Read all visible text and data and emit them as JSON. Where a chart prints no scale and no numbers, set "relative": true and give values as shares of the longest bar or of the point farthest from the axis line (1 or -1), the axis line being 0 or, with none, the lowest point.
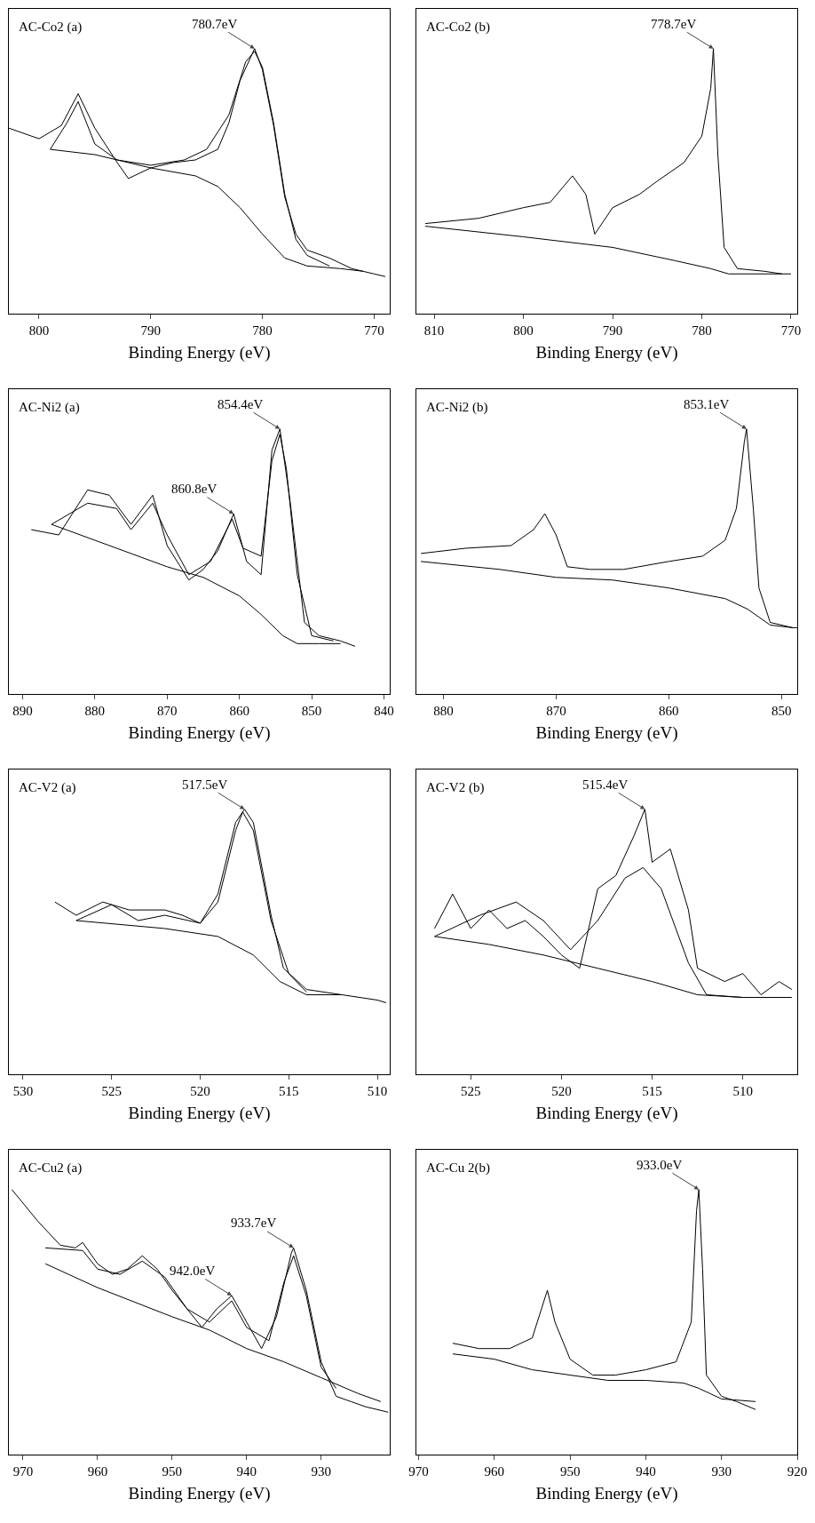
{
  "chart_data": [
    {
      "type": "line",
      "relative": true,
      "title": "AC-Co2 (a)",
      "xlabel": "Binding Energy (eV)",
      "xlim": [
        802.7,
        768.6
      ],
      "xticks": [
        800,
        790,
        780,
        770
      ],
      "annotations": [
        {
          "text": "780.7eV",
          "x": 780.7,
          "y": 1.0
        }
      ],
      "series": [
        {
          "color": "#000000",
          "x": [
            802.7,
            800,
            798,
            796.5,
            795,
            793,
            792,
            790,
            788,
            786,
            784,
            783,
            782,
            780.7,
            780,
            779,
            778,
            777,
            776,
            774,
            772,
            770,
            769
          ],
          "values": [
            0.7,
            0.66,
            0.71,
            0.83,
            0.7,
            0.57,
            0.51,
            0.55,
            0.57,
            0.58,
            0.62,
            0.72,
            0.88,
            1.0,
            0.92,
            0.71,
            0.44,
            0.3,
            0.24,
            0.21,
            0.17,
            0.15,
            0.14
          ]
        },
        {
          "color": "#000000",
          "x": [
            799,
            797.5,
            796.5,
            795,
            793,
            790,
            787,
            785,
            783,
            781.5,
            780.7,
            780,
            779,
            778,
            777,
            776,
            774
          ],
          "values": [
            0.62,
            0.72,
            0.8,
            0.64,
            0.58,
            0.56,
            0.58,
            0.62,
            0.75,
            0.95,
            0.99,
            0.93,
            0.72,
            0.45,
            0.28,
            0.22,
            0.18
          ]
        },
        {
          "color": "#000000",
          "x": [
            799,
            795,
            790,
            786,
            784,
            782,
            780,
            778,
            776,
            773,
            771
          ],
          "values": [
            0.62,
            0.6,
            0.55,
            0.52,
            0.48,
            0.4,
            0.3,
            0.21,
            0.18,
            0.17,
            0.16
          ]
        }
      ]
    },
    {
      "type": "line",
      "relative": true,
      "title": "AC-Co2 (b)",
      "xlabel": "Binding Energy (eV)",
      "xlim": [
        812,
        769.3
      ],
      "xticks": [
        810,
        800,
        790,
        780,
        770
      ],
      "annotations": [
        {
          "text": "778.7eV",
          "x": 778.7,
          "y": 1.0
        }
      ],
      "series": [
        {
          "color": "#000000",
          "x": [
            811,
            805,
            800,
            797,
            794.5,
            793,
            792,
            790,
            787,
            785,
            782,
            780,
            779,
            778.7,
            778.2,
            777.5,
            776,
            773,
            771,
            770
          ],
          "values": [
            0.34,
            0.36,
            0.4,
            0.42,
            0.52,
            0.45,
            0.3,
            0.4,
            0.45,
            0.5,
            0.57,
            0.67,
            0.85,
            1.0,
            0.6,
            0.25,
            0.17,
            0.16,
            0.15,
            0.15
          ]
        },
        {
          "color": "#000000",
          "x": [
            811,
            800,
            790,
            783,
            779,
            777,
            771
          ],
          "values": [
            0.33,
            0.29,
            0.25,
            0.2,
            0.17,
            0.15,
            0.15
          ]
        }
      ]
    },
    {
      "type": "line",
      "relative": true,
      "title": "AC-Ni2 (a)",
      "xlabel": "Binding Energy (eV)",
      "xlim": [
        891.9,
        839.2
      ],
      "xticks": [
        890,
        880,
        870,
        860,
        850,
        840
      ],
      "annotations": [
        {
          "text": "854.4eV",
          "x": 854.4,
          "y": 1.0
        },
        {
          "text": "860.8eV",
          "x": 860.8,
          "y": 0.68
        }
      ],
      "series": [
        {
          "color": "#000000",
          "x": [
            888.8,
            885,
            881,
            878,
            875,
            872,
            870,
            867,
            865,
            863,
            860.8,
            859,
            857,
            855.5,
            854.4,
            853,
            851,
            849,
            846,
            844
          ],
          "values": [
            0.62,
            0.6,
            0.77,
            0.75,
            0.64,
            0.75,
            0.56,
            0.43,
            0.47,
            0.54,
            0.68,
            0.5,
            0.45,
            0.92,
            1.0,
            0.73,
            0.27,
            0.22,
            0.2,
            0.18
          ]
        },
        {
          "color": "#000000",
          "x": [
            886,
            881,
            877,
            875,
            872,
            870,
            867,
            864,
            861,
            859.5,
            857,
            855.5,
            854.4,
            853.5,
            852,
            850,
            847
          ],
          "values": [
            0.64,
            0.72,
            0.7,
            0.62,
            0.72,
            0.6,
            0.45,
            0.5,
            0.66,
            0.55,
            0.52,
            0.88,
            0.98,
            0.85,
            0.45,
            0.22,
            0.2
          ]
        },
        {
          "color": "#000000",
          "x": [
            886,
            880,
            875,
            870,
            865,
            860,
            857,
            854,
            852,
            849,
            846
          ],
          "values": [
            0.64,
            0.58,
            0.53,
            0.48,
            0.44,
            0.37,
            0.3,
            0.22,
            0.19,
            0.19,
            0.19
          ]
        }
      ]
    },
    {
      "type": "line",
      "relative": true,
      "title": "AC-Ni2 (b)",
      "xlabel": "Binding Energy (eV)",
      "xlim": [
        882.4,
        848.6
      ],
      "xticks": [
        880,
        870,
        860,
        850
      ],
      "annotations": [
        {
          "text": "853.1eV",
          "x": 853.1,
          "y": 1.0
        }
      ],
      "series": [
        {
          "color": "#000000",
          "x": [
            882,
            878,
            874,
            872,
            871,
            870,
            869,
            867,
            864,
            860,
            857,
            855,
            854,
            853.3,
            853.1,
            852.5,
            852,
            851,
            849,
            848.6
          ],
          "values": [
            0.53,
            0.55,
            0.56,
            0.62,
            0.68,
            0.6,
            0.48,
            0.47,
            0.47,
            0.5,
            0.52,
            0.58,
            0.7,
            0.95,
            1.0,
            0.7,
            0.4,
            0.27,
            0.25,
            0.25
          ]
        },
        {
          "color": "#000000",
          "x": [
            882,
            875,
            870,
            865,
            860,
            855,
            853,
            851,
            849
          ],
          "values": [
            0.5,
            0.47,
            0.44,
            0.43,
            0.4,
            0.36,
            0.32,
            0.26,
            0.25
          ]
        }
      ]
    },
    {
      "type": "line",
      "relative": true,
      "title": "AC-V2 (a)",
      "xlabel": "Binding Energy (eV)",
      "xlim": [
        530.8,
        509.3
      ],
      "xticks": [
        530,
        525,
        520,
        515,
        510
      ],
      "annotations": [
        {
          "text": "517.5eV",
          "x": 517.5,
          "y": 1.0
        }
      ],
      "series": [
        {
          "color": "#000000",
          "x": [
            528.2,
            527,
            525.5,
            524,
            522,
            521,
            520,
            519,
            518,
            517.5,
            517,
            516,
            515.3,
            514,
            512,
            510,
            509.5
          ],
          "values": [
            0.65,
            0.6,
            0.65,
            0.62,
            0.62,
            0.6,
            0.57,
            0.68,
            0.95,
            1.0,
            0.95,
            0.6,
            0.4,
            0.32,
            0.3,
            0.28,
            0.27
          ]
        },
        {
          "color": "#000000",
          "x": [
            527,
            525,
            523.5,
            522,
            520,
            519,
            518,
            517.6,
            517,
            516,
            515,
            514
          ],
          "values": [
            0.58,
            0.64,
            0.58,
            0.6,
            0.57,
            0.65,
            0.92,
            0.99,
            0.92,
            0.58,
            0.38,
            0.31
          ]
        },
        {
          "color": "#000000",
          "x": [
            527,
            522,
            519,
            517,
            515.5,
            514,
            512
          ],
          "values": [
            0.58,
            0.55,
            0.52,
            0.45,
            0.35,
            0.3,
            0.3
          ]
        }
      ]
    },
    {
      "type": "line",
      "relative": true,
      "title": "AC-V2 (b)",
      "xlabel": "Binding Energy (eV)",
      "xlim": [
        528,
        507
      ],
      "xticks": [
        525,
        520,
        515,
        510
      ],
      "annotations": [
        {
          "text": "515.4eV",
          "x": 515.4,
          "y": 1.0
        }
      ],
      "series": [
        {
          "color": "#000000",
          "x": [
            527,
            526,
            525,
            524,
            523,
            522,
            521,
            520,
            519,
            518.5,
            518,
            517,
            516,
            515.4,
            515,
            514,
            513,
            512.5,
            511,
            510,
            509,
            508,
            507.3
          ],
          "values": [
            0.55,
            0.68,
            0.55,
            0.62,
            0.55,
            0.58,
            0.52,
            0.45,
            0.4,
            0.55,
            0.7,
            0.75,
            0.9,
            1.0,
            0.8,
            0.85,
            0.62,
            0.4,
            0.35,
            0.38,
            0.3,
            0.35,
            0.32
          ]
        },
        {
          "color": "#000000",
          "x": [
            527,
            524.5,
            522.5,
            521,
            519.5,
            518,
            516.5,
            515.5,
            514.5,
            513,
            512,
            510
          ],
          "values": [
            0.52,
            0.6,
            0.65,
            0.58,
            0.47,
            0.58,
            0.74,
            0.78,
            0.7,
            0.42,
            0.3,
            0.29
          ]
        },
        {
          "color": "#000000",
          "x": [
            527,
            524,
            521,
            518,
            515,
            512.5,
            510,
            507.3
          ],
          "values": [
            0.52,
            0.49,
            0.45,
            0.4,
            0.35,
            0.3,
            0.29,
            0.29
          ]
        }
      ]
    },
    {
      "type": "line",
      "relative": true,
      "title": "AC-Cu2 (a)",
      "xlabel": "Binding Energy (eV)",
      "xlim": [
        971.9,
        920.8
      ],
      "xticks": [
        970,
        960,
        950,
        940,
        930
      ],
      "annotations": [
        {
          "text": "933.7eV",
          "x": 933.7,
          "y": 0.78
        },
        {
          "text": "942.0eV",
          "x": 942,
          "y": 0.6
        }
      ],
      "series": [
        {
          "color": "#000000",
          "x": [
            971.5,
            968,
            965,
            963,
            962,
            960,
            958,
            956,
            954,
            952,
            950,
            948,
            946,
            944,
            942,
            940,
            938,
            936,
            934,
            933.7,
            932,
            930,
            928,
            926,
            924,
            921
          ],
          "values": [
            1.0,
            0.88,
            0.79,
            0.78,
            0.8,
            0.72,
            0.68,
            0.7,
            0.75,
            0.7,
            0.62,
            0.55,
            0.48,
            0.55,
            0.6,
            0.5,
            0.4,
            0.52,
            0.76,
            0.78,
            0.62,
            0.35,
            0.22,
            0.2,
            0.18,
            0.16
          ]
        },
        {
          "color": "#000000",
          "x": [
            967,
            962,
            960,
            957,
            954,
            951,
            948,
            945,
            942,
            940,
            937,
            935,
            933.7,
            932,
            930,
            928
          ],
          "values": [
            0.78,
            0.77,
            0.7,
            0.68,
            0.73,
            0.67,
            0.55,
            0.5,
            0.58,
            0.48,
            0.43,
            0.65,
            0.75,
            0.6,
            0.33,
            0.25
          ]
        },
        {
          "color": "#000000",
          "x": [
            967,
            960,
            950,
            945,
            940,
            935,
            930,
            925,
            922
          ],
          "values": [
            0.72,
            0.63,
            0.52,
            0.47,
            0.4,
            0.35,
            0.29,
            0.23,
            0.2
          ]
        }
      ]
    },
    {
      "type": "line",
      "relative": true,
      "title": "AC-Cu 2(b)",
      "xlabel": "Binding Energy (eV)",
      "xlim": [
        970.3,
        920
      ],
      "xticks": [
        970,
        960,
        950,
        940,
        930,
        920
      ],
      "annotations": [
        {
          "text": "933.0eV",
          "x": 933,
          "y": 1.0
        }
      ],
      "series": [
        {
          "color": "#000000",
          "x": [
            965.5,
            962,
            958,
            955,
            953,
            952,
            950,
            947,
            944,
            940,
            936,
            934,
            933.3,
            933,
            932.5,
            932,
            930,
            928,
            925.5
          ],
          "values": [
            0.42,
            0.4,
            0.4,
            0.44,
            0.62,
            0.5,
            0.36,
            0.3,
            0.3,
            0.32,
            0.35,
            0.5,
            0.92,
            1.0,
            0.7,
            0.3,
            0.22,
            0.2,
            0.17
          ]
        },
        {
          "color": "#000000",
          "x": [
            965.5,
            960,
            955,
            950,
            945,
            940,
            935,
            933,
            930,
            925.5
          ],
          "values": [
            0.38,
            0.36,
            0.32,
            0.3,
            0.28,
            0.28,
            0.27,
            0.25,
            0.21,
            0.2
          ]
        }
      ]
    }
  ]
}
